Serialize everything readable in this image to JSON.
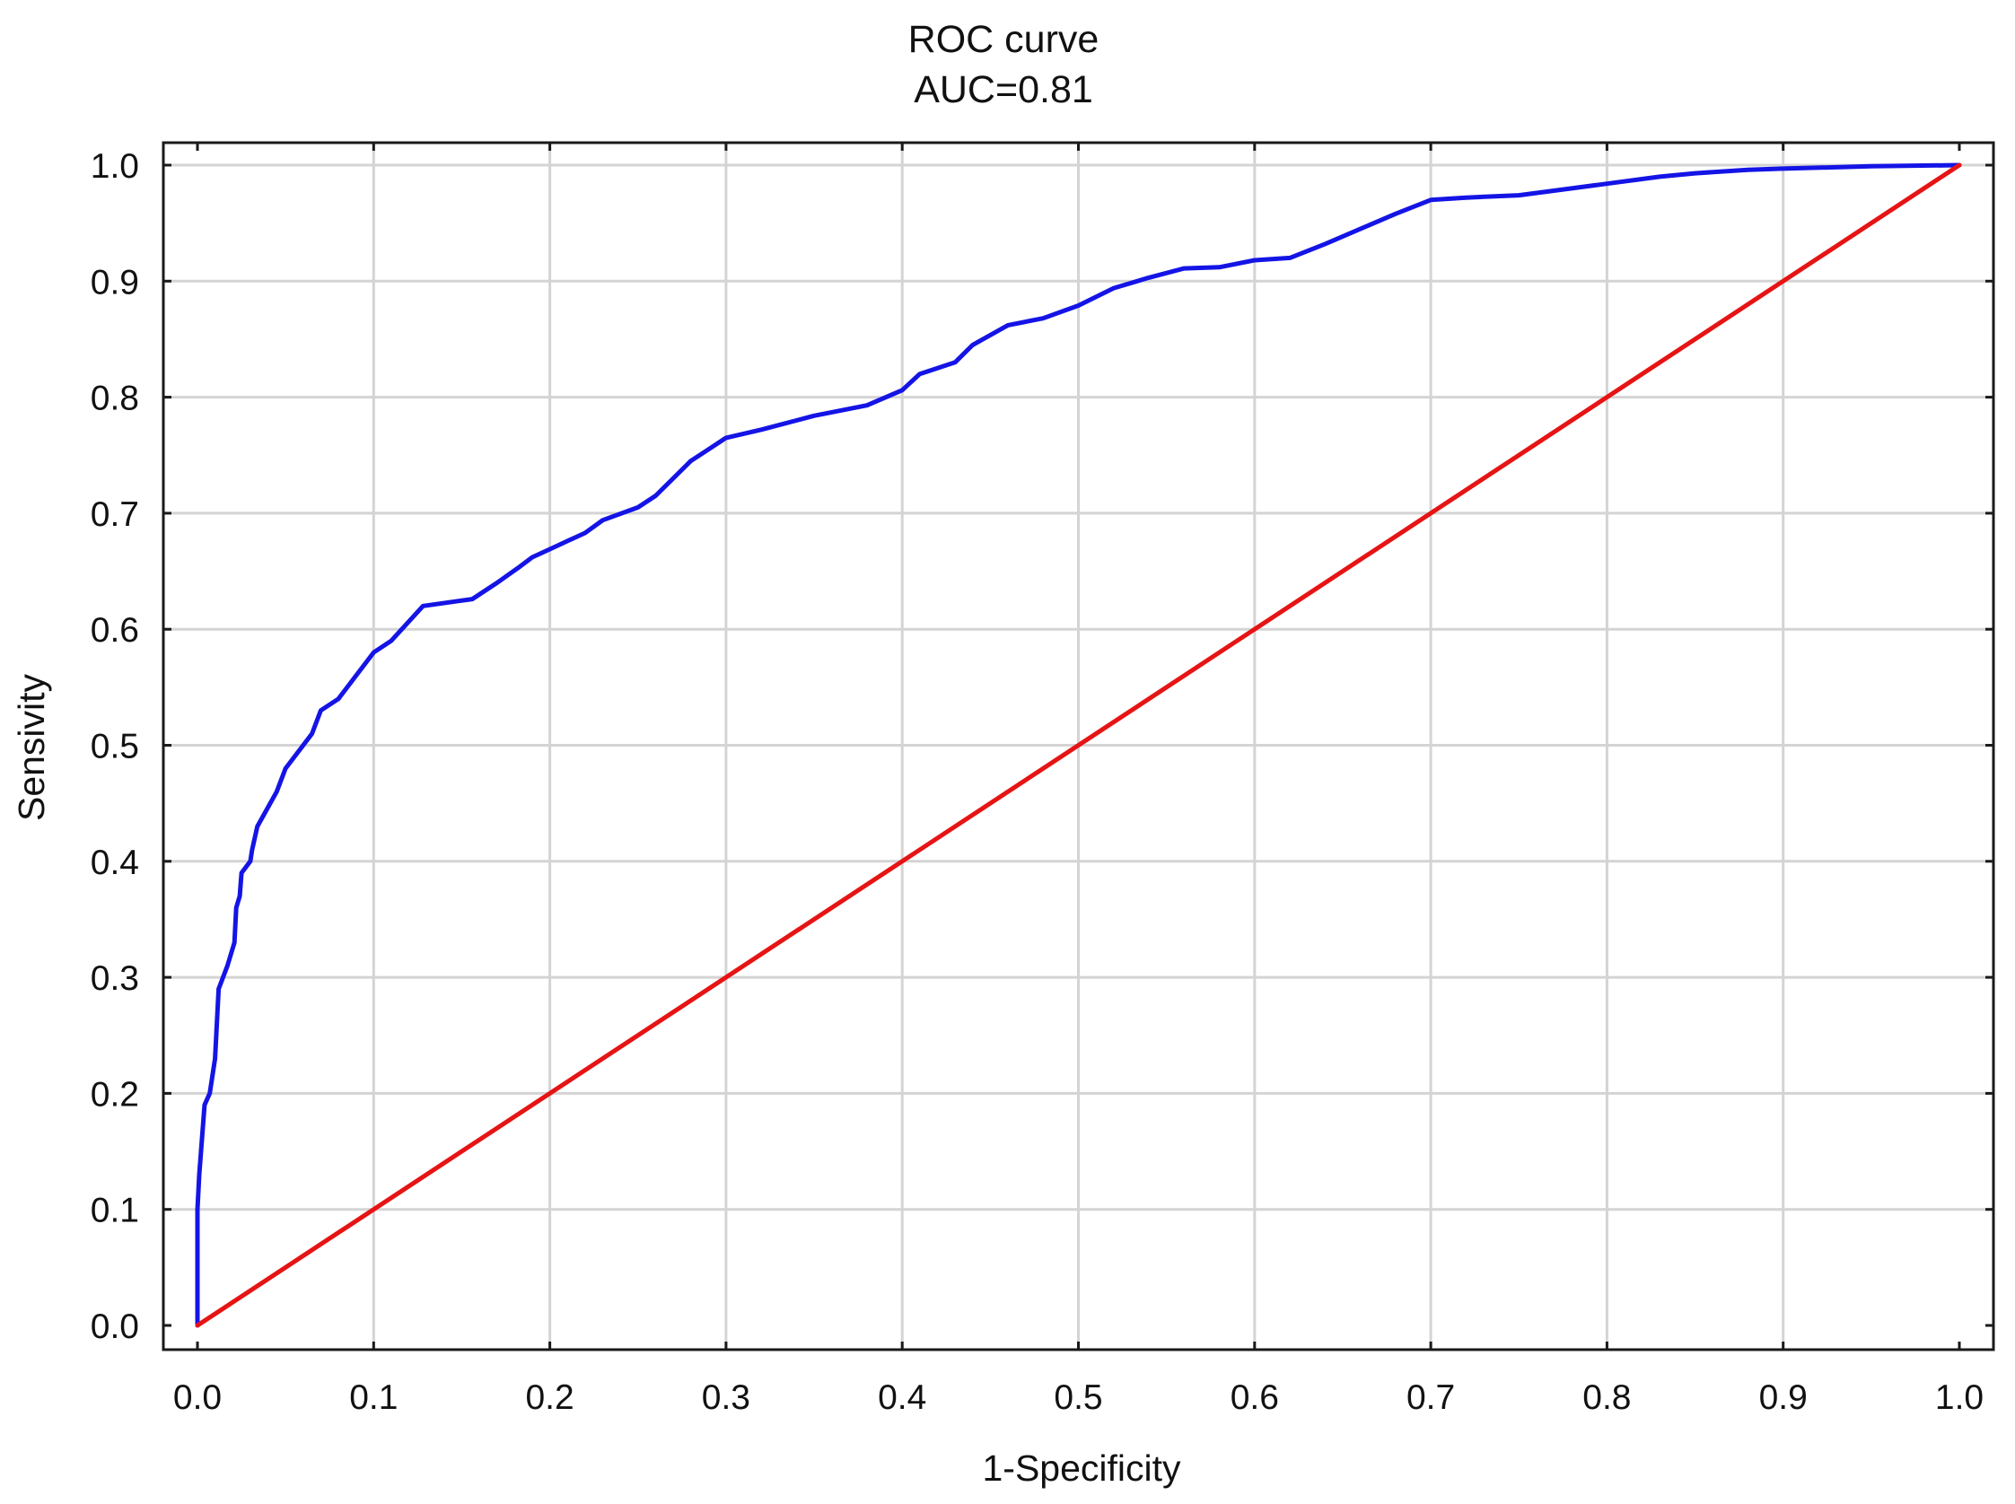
{
  "chart_data": {
    "type": "line",
    "title": "ROC curve",
    "subtitle": "AUC=0.81",
    "xlabel": "1-Specificity",
    "ylabel": "Sensivity",
    "xlim": [
      0.0,
      1.0
    ],
    "ylim": [
      0.0,
      1.0
    ],
    "x_ticks": [
      "0.0",
      "0.1",
      "0.2",
      "0.3",
      "0.4",
      "0.5",
      "0.6",
      "0.7",
      "0.8",
      "0.9",
      "1.0"
    ],
    "y_ticks": [
      "0.0",
      "0.1",
      "0.2",
      "0.3",
      "0.4",
      "0.5",
      "0.6",
      "0.7",
      "0.8",
      "0.9",
      "1.0"
    ],
    "grid": true,
    "series": [
      {
        "color": "#1414e6",
        "points": [
          [
            0.0,
            0.0
          ],
          [
            0.0,
            0.1
          ],
          [
            0.001,
            0.13
          ],
          [
            0.004,
            0.19
          ],
          [
            0.007,
            0.2
          ],
          [
            0.01,
            0.23
          ],
          [
            0.012,
            0.29
          ],
          [
            0.017,
            0.31
          ],
          [
            0.021,
            0.33
          ],
          [
            0.022,
            0.36
          ],
          [
            0.024,
            0.37
          ],
          [
            0.025,
            0.39
          ],
          [
            0.03,
            0.4
          ],
          [
            0.031,
            0.41
          ],
          [
            0.034,
            0.43
          ],
          [
            0.045,
            0.46
          ],
          [
            0.05,
            0.48
          ],
          [
            0.06,
            0.5
          ],
          [
            0.065,
            0.51
          ],
          [
            0.07,
            0.53
          ],
          [
            0.08,
            0.54
          ],
          [
            0.09,
            0.56
          ],
          [
            0.1,
            0.58
          ],
          [
            0.11,
            0.59
          ],
          [
            0.128,
            0.62
          ],
          [
            0.156,
            0.626
          ],
          [
            0.17,
            0.64
          ],
          [
            0.183,
            0.654
          ],
          [
            0.19,
            0.662
          ],
          [
            0.2,
            0.669
          ],
          [
            0.21,
            0.676
          ],
          [
            0.22,
            0.683
          ],
          [
            0.23,
            0.694
          ],
          [
            0.25,
            0.705
          ],
          [
            0.26,
            0.715
          ],
          [
            0.27,
            0.73
          ],
          [
            0.28,
            0.745
          ],
          [
            0.29,
            0.755
          ],
          [
            0.3,
            0.765
          ],
          [
            0.32,
            0.772
          ],
          [
            0.35,
            0.784
          ],
          [
            0.38,
            0.793
          ],
          [
            0.4,
            0.806
          ],
          [
            0.41,
            0.82
          ],
          [
            0.43,
            0.83
          ],
          [
            0.44,
            0.845
          ],
          [
            0.46,
            0.862
          ],
          [
            0.48,
            0.868
          ],
          [
            0.5,
            0.879
          ],
          [
            0.52,
            0.894
          ],
          [
            0.54,
            0.903
          ],
          [
            0.56,
            0.911
          ],
          [
            0.58,
            0.912
          ],
          [
            0.6,
            0.918
          ],
          [
            0.62,
            0.92
          ],
          [
            0.64,
            0.932
          ],
          [
            0.66,
            0.945
          ],
          [
            0.68,
            0.958
          ],
          [
            0.7,
            0.97
          ],
          [
            0.72,
            0.972
          ],
          [
            0.75,
            0.974
          ],
          [
            0.78,
            0.98
          ],
          [
            0.8,
            0.984
          ],
          [
            0.83,
            0.99
          ],
          [
            0.85,
            0.993
          ],
          [
            0.88,
            0.996
          ],
          [
            0.9,
            0.997
          ],
          [
            0.95,
            0.999
          ],
          [
            1.0,
            1.0
          ]
        ]
      },
      {
        "color": "#e61414",
        "points": [
          [
            0.0,
            0.0
          ],
          [
            1.0,
            1.0
          ]
        ]
      }
    ]
  }
}
